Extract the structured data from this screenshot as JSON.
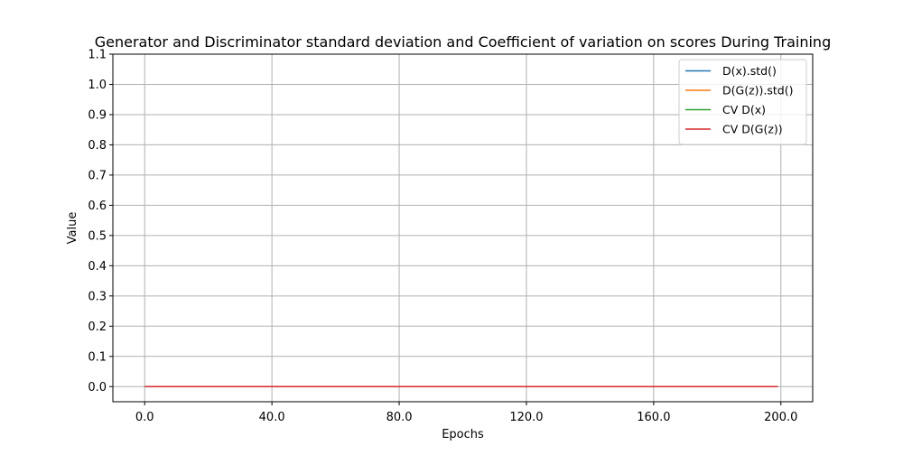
{
  "chart_data": {
    "type": "line",
    "title": "Generator and Discriminator standard deviation and Coefficient of variation on scores During Training",
    "xlabel": "Epochs",
    "ylabel": "Value",
    "xlim": [
      -10,
      210
    ],
    "ylim": [
      -0.05,
      1.1
    ],
    "x_ticks": [
      0,
      40,
      80,
      120,
      160,
      200
    ],
    "x_tick_labels": [
      "0.0",
      "40.0",
      "80.0",
      "120.0",
      "160.0",
      "200.0"
    ],
    "y_ticks": [
      0.0,
      0.1,
      0.2,
      0.3,
      0.4,
      0.5,
      0.6,
      0.7,
      0.8,
      0.9,
      1.0,
      1.1
    ],
    "y_tick_labels": [
      "0.0",
      "0.1",
      "0.2",
      "0.3",
      "0.4",
      "0.5",
      "0.6",
      "0.7",
      "0.8",
      "0.9",
      "1.0",
      "1.1"
    ],
    "grid": true,
    "legend_position": "top-right",
    "series": [
      {
        "name": "D(x).std()",
        "color": "#1f77b4",
        "x": [
          0,
          199
        ],
        "y": [
          0.0,
          0.0
        ]
      },
      {
        "name": "D(G(z)).std()",
        "color": "#ff7f0e",
        "x": [
          0,
          199
        ],
        "y": [
          0.0,
          0.0
        ]
      },
      {
        "name": "CV D(x)",
        "color": "#2ca02c",
        "x": [
          0,
          199
        ],
        "y": [
          0.0,
          0.0
        ]
      },
      {
        "name": "CV D(G(z))",
        "color": "#d62728",
        "x": [
          0,
          199
        ],
        "y": [
          0.0,
          0.0
        ]
      }
    ]
  }
}
